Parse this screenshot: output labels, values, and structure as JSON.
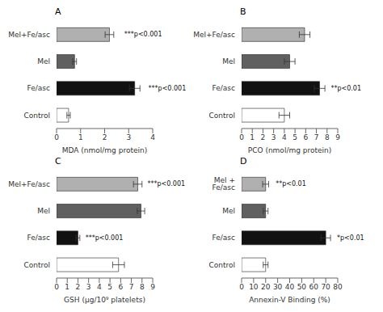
{
  "chart_data": [
    {
      "type": "bar",
      "orientation": "horizontal",
      "title": "A",
      "xlabel": "MDA (nmol/mg protein)",
      "categories": [
        "Mel+Fe/asc",
        "Mel",
        "Fe/asc",
        "Control"
      ],
      "values": [
        2.2,
        0.75,
        3.25,
        0.5
      ],
      "errors": [
        0.18,
        0.08,
        0.22,
        0.07
      ],
      "colors": [
        "#b0b0b0",
        "#606060",
        "#111111",
        "#ffffff"
      ],
      "xlim": [
        0,
        4
      ],
      "xticks": [
        0,
        1,
        2,
        3,
        4
      ],
      "annotations": [
        {
          "category": "Mel+Fe/asc",
          "text": "***p<0.001",
          "x": 2.75
        },
        {
          "category": "Fe/asc",
          "text": "***p<0.001",
          "x": 3.75
        }
      ]
    },
    {
      "type": "bar",
      "orientation": "horizontal",
      "title": "B",
      "xlabel": "PCO (nmol/mg protein)",
      "categories": [
        "Mel+Fe/asc",
        "Mel",
        "Fe/asc",
        "Control"
      ],
      "values": [
        5.9,
        4.5,
        7.3,
        4.0
      ],
      "errors": [
        0.5,
        0.5,
        0.5,
        0.5
      ],
      "colors": [
        "#b0b0b0",
        "#606060",
        "#111111",
        "#ffffff"
      ],
      "xlim": [
        0,
        9
      ],
      "xticks": [
        0,
        1,
        2,
        3,
        4,
        5,
        6,
        7,
        8,
        9
      ],
      "annotations": [
        {
          "category": "Fe/asc",
          "text": "**p<0.01",
          "x": 8.2
        }
      ]
    },
    {
      "type": "bar",
      "orientation": "horizontal",
      "title": "C",
      "xlabel": "GSH (μg/10⁹ platelets)",
      "categories": [
        "Mel+Fe/asc",
        "Mel",
        "Fe/asc",
        "Control"
      ],
      "values": [
        7.6,
        7.9,
        2.0,
        5.8
      ],
      "errors": [
        0.4,
        0.35,
        0.18,
        0.55
      ],
      "colors": [
        "#b0b0b0",
        "#606060",
        "#111111",
        "#ffffff"
      ],
      "xlim": [
        0,
        9
      ],
      "xticks": [
        0,
        1,
        2,
        3,
        4,
        5,
        6,
        7,
        8,
        9
      ],
      "annotations": [
        {
          "category": "Mel+Fe/asc",
          "text": "***p<0.001",
          "x": 8.35
        },
        {
          "category": "Fe/asc",
          "text": "***p<0.001",
          "x": 2.55
        }
      ]
    },
    {
      "type": "bar",
      "orientation": "horizontal",
      "title": "D",
      "xlabel": "Annexin-V Binding (%)",
      "categories": [
        "Mel + Fe/asc",
        "Mel",
        "Fe/asc",
        "Control"
      ],
      "values": [
        20,
        20,
        70,
        20
      ],
      "errors": [
        2.5,
        2,
        4,
        2
      ],
      "colors": [
        "#b0b0b0",
        "#606060",
        "#111111",
        "#ffffff"
      ],
      "xlim": [
        0,
        80
      ],
      "xticks": [
        0,
        10,
        20,
        30,
        40,
        50,
        60,
        70,
        80
      ],
      "annotations": [
        {
          "category": "Mel + Fe/asc",
          "text": "**p<0.01",
          "x": 27
        },
        {
          "category": "Fe/asc",
          "text": "*p<0.01",
          "x": 78
        }
      ]
    }
  ]
}
